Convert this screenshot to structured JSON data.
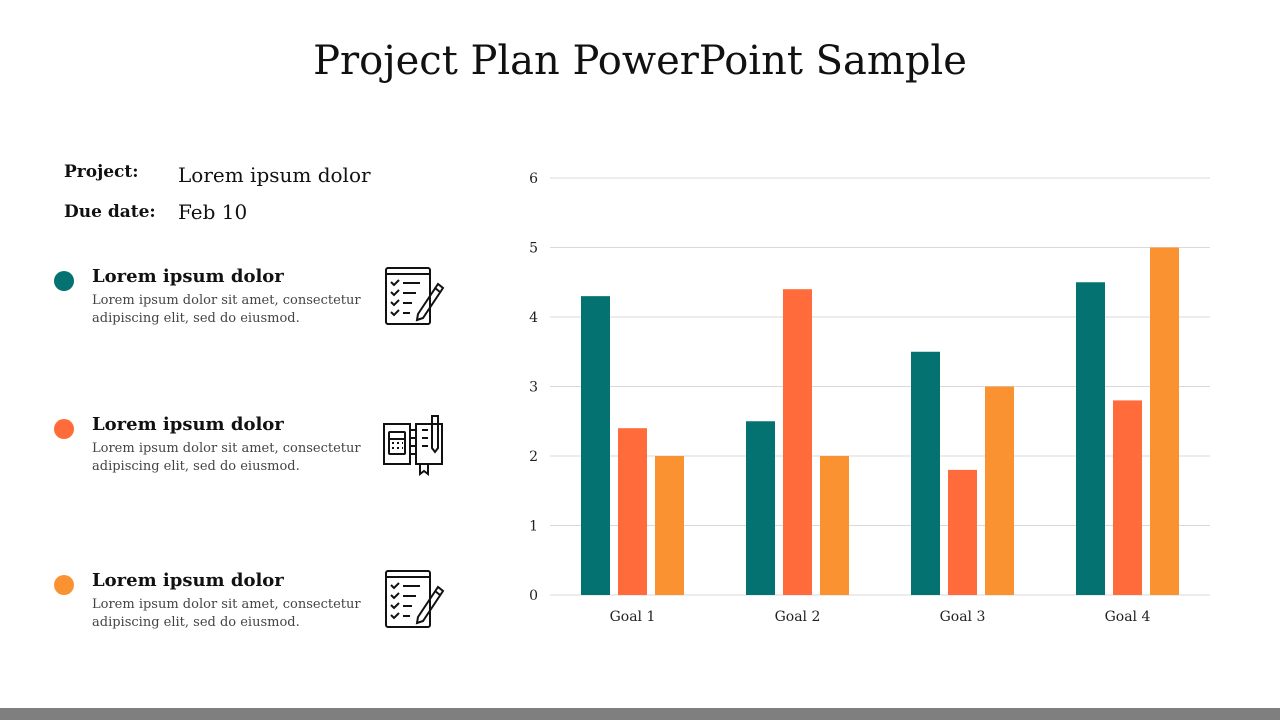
{
  "title": "Project Plan PowerPoint Sample",
  "meta": {
    "project_label": "Project:",
    "project_value": "Lorem ipsum dolor",
    "due_label": "Due date:",
    "due_value": "Feb 10"
  },
  "bullets": [
    {
      "title": "Lorem ipsum dolor",
      "text": "Lorem ipsum dolor sit amet, consectetur adipiscing elit, sed do eiusmod.",
      "color": "#057272",
      "icon": "checklist-pencil-icon"
    },
    {
      "title": "Lorem ipsum dolor",
      "text": "Lorem ipsum dolor sit amet, consectetur adipiscing elit, sed do eiusmod.",
      "color": "#FF6B3A",
      "icon": "planner-calculator-icon"
    },
    {
      "title": "Lorem ipsum dolor",
      "text": "Lorem ipsum dolor sit amet, consectetur adipiscing elit, sed do eiusmod.",
      "color": "#FA9232",
      "icon": "checklist-pencil-icon"
    }
  ],
  "chart_data": {
    "type": "bar",
    "categories": [
      "Goal 1",
      "Goal 2",
      "Goal 3",
      "Goal 4"
    ],
    "series": [
      {
        "values": [
          4.3,
          2.5,
          3.5,
          4.5
        ],
        "color": "#057272"
      },
      {
        "values": [
          2.4,
          4.4,
          1.8,
          2.8
        ],
        "color": "#FF6B3A"
      },
      {
        "values": [
          2.0,
          2.0,
          3.0,
          5.0
        ],
        "color": "#FA9232"
      }
    ],
    "ylim": [
      0,
      6
    ],
    "yticks": [
      "0",
      "1",
      "2",
      "3",
      "4",
      "5",
      "6"
    ],
    "grid": true,
    "title": "",
    "xlabel": "",
    "ylabel": ""
  }
}
